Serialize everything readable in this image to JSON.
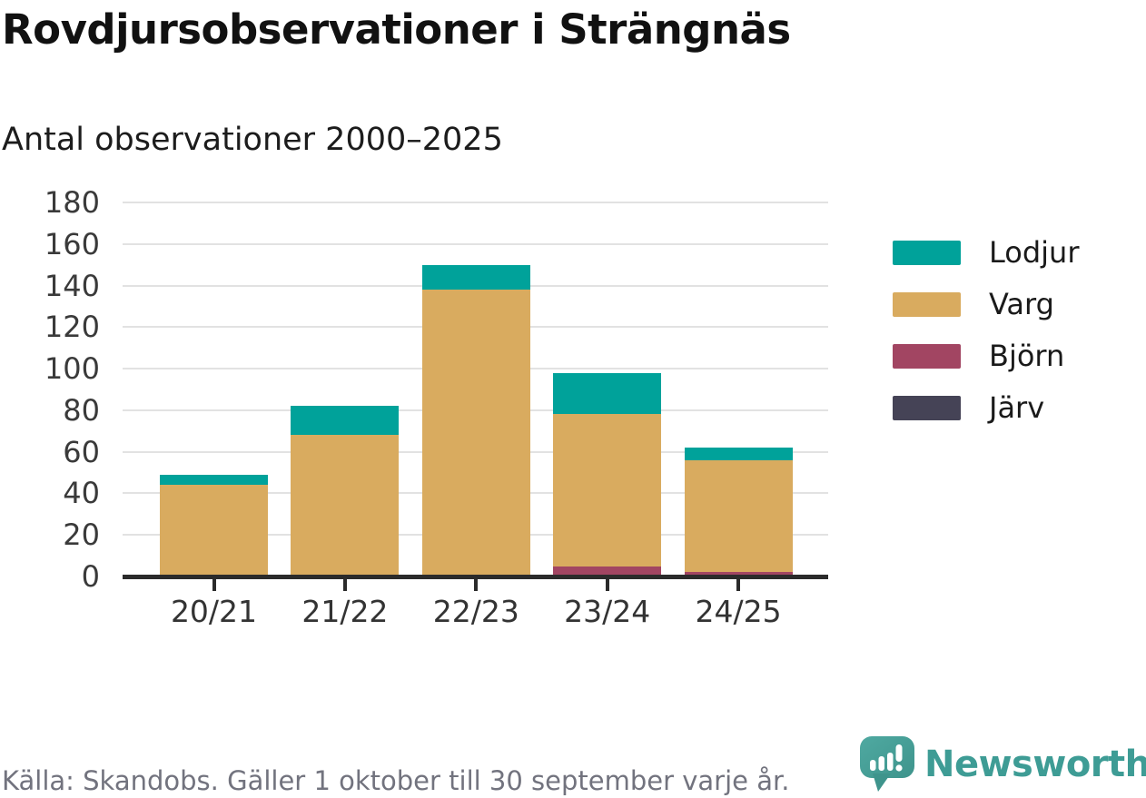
{
  "title": "Rovdjursobservationer i Strängnäs",
  "subtitle": "Antal observationer 2000–2025",
  "footer": {
    "source": "Källa: Skandobs. Gäller 1 oktober till 30 september varje år.",
    "brand": "Newsworthy"
  },
  "colors": {
    "brand_teal": "#3e9c95",
    "logo_background": "#4aa49c",
    "grid": "#e2e2e2",
    "axis": "#2b2b2b",
    "axis_text": "#333333",
    "source_text": "#72737e"
  },
  "chart_data": {
    "type": "bar",
    "stacked": true,
    "title": "Rovdjursobservationer i Strängnäs",
    "subtitle": "Antal observationer 2000–2025",
    "xlabel": "",
    "ylabel": "Antal observationer",
    "categories": [
      "20/21",
      "21/22",
      "22/23",
      "23/24",
      "24/25"
    ],
    "series": [
      {
        "name": "Lodjur",
        "color": "#00a29a",
        "values": [
          5,
          14,
          12,
          20,
          6
        ]
      },
      {
        "name": "Varg",
        "color": "#d9ab5f",
        "values": [
          44,
          68,
          138,
          73,
          54
        ]
      },
      {
        "name": "Björn",
        "color": "#a24562",
        "values": [
          0,
          0,
          0,
          5,
          2
        ]
      },
      {
        "name": "Järv",
        "color": "#454356",
        "values": [
          0,
          0,
          0,
          0,
          0
        ]
      }
    ],
    "totals": [
      49,
      82,
      150,
      98,
      62
    ],
    "ylim": [
      0,
      180
    ],
    "yticks": [
      0,
      20,
      40,
      60,
      80,
      100,
      120,
      140,
      160,
      180
    ],
    "grid": true,
    "legend_position": "right"
  }
}
